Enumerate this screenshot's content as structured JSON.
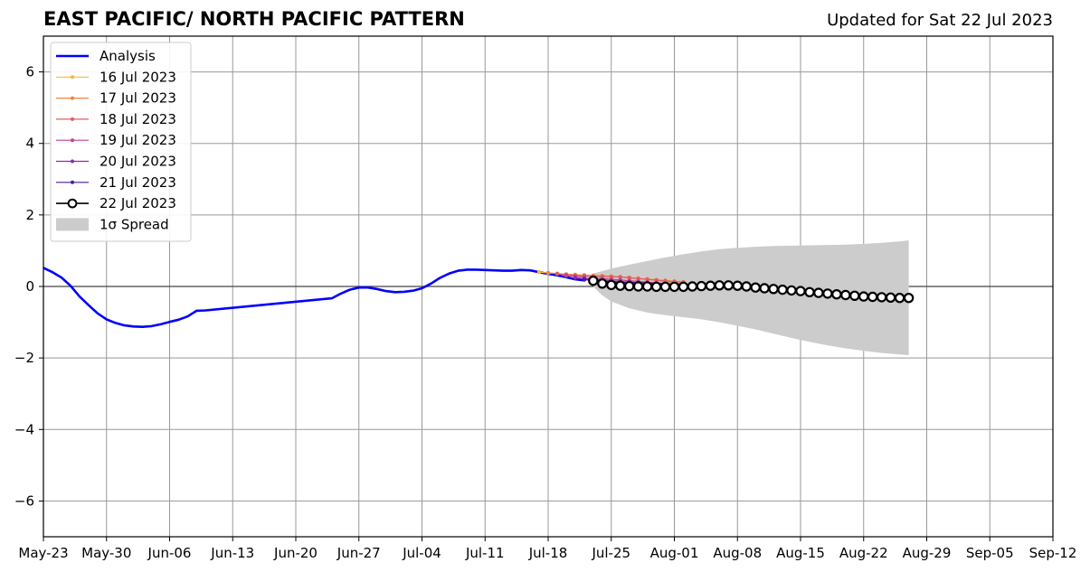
{
  "header": {
    "title": "EAST PACIFIC/ NORTH PACIFIC PATTERN",
    "subtitle": "Updated for Sat 22 Jul 2023"
  },
  "chart_data": {
    "type": "line",
    "title": "EAST PACIFIC/ NORTH PACIFIC PATTERN",
    "subtitle": "Updated for Sat 22 Jul 2023",
    "xlabel": "",
    "ylabel": "",
    "xlim": [
      "2023-05-23",
      "2023-09-12"
    ],
    "ylim": [
      -7,
      7
    ],
    "x_ticks": [
      "May-23",
      "May-30",
      "Jun-06",
      "Jun-13",
      "Jun-20",
      "Jun-27",
      "Jul-04",
      "Jul-11",
      "Jul-18",
      "Jul-25",
      "Aug-01",
      "Aug-08",
      "Aug-15",
      "Aug-22",
      "Aug-29",
      "Sep-05",
      "Sep-12"
    ],
    "y_ticks": [
      -6,
      -4,
      -2,
      0,
      2,
      4,
      6
    ],
    "y_tick_labels": [
      "−6",
      "−4",
      "−2",
      "0",
      "2",
      "4",
      "6"
    ],
    "grid": true,
    "legend_position": "top-left",
    "analysis": {
      "name": "Analysis",
      "color": "#0000ff",
      "points": [
        [
          "2023-05-23",
          0.52
        ],
        [
          "2023-05-24",
          0.4
        ],
        [
          "2023-05-25",
          0.25
        ],
        [
          "2023-05-26",
          0.02
        ],
        [
          "2023-05-27",
          -0.28
        ],
        [
          "2023-05-28",
          -0.52
        ],
        [
          "2023-05-29",
          -0.75
        ],
        [
          "2023-05-30",
          -0.92
        ],
        [
          "2023-05-31",
          -1.02
        ],
        [
          "2023-06-01",
          -1.09
        ],
        [
          "2023-06-02",
          -1.12
        ],
        [
          "2023-06-03",
          -1.13
        ],
        [
          "2023-06-04",
          -1.11
        ],
        [
          "2023-06-05",
          -1.06
        ],
        [
          "2023-06-06",
          -0.99
        ],
        [
          "2023-06-07",
          -0.93
        ],
        [
          "2023-06-08",
          -0.84
        ],
        [
          "2023-06-09",
          -0.68
        ],
        [
          "2023-06-10",
          -0.67
        ],
        [
          "2023-06-24",
          -0.33
        ],
        [
          "2023-06-25",
          -0.2
        ],
        [
          "2023-06-26",
          -0.09
        ],
        [
          "2023-06-27",
          -0.03
        ],
        [
          "2023-06-28",
          -0.03
        ],
        [
          "2023-06-29",
          -0.07
        ],
        [
          "2023-06-30",
          -0.13
        ],
        [
          "2023-07-01",
          -0.16
        ],
        [
          "2023-07-02",
          -0.15
        ],
        [
          "2023-07-03",
          -0.12
        ],
        [
          "2023-07-04",
          -0.05
        ],
        [
          "2023-07-05",
          0.08
        ],
        [
          "2023-07-06",
          0.24
        ],
        [
          "2023-07-07",
          0.36
        ],
        [
          "2023-07-08",
          0.44
        ],
        [
          "2023-07-09",
          0.47
        ],
        [
          "2023-07-10",
          0.47
        ],
        [
          "2023-07-11",
          0.46
        ],
        [
          "2023-07-12",
          0.45
        ],
        [
          "2023-07-13",
          0.44
        ],
        [
          "2023-07-14",
          0.44
        ],
        [
          "2023-07-15",
          0.46
        ],
        [
          "2023-07-16",
          0.45
        ],
        [
          "2023-07-17",
          0.4
        ],
        [
          "2023-07-18",
          0.35
        ],
        [
          "2023-07-19",
          0.31
        ],
        [
          "2023-07-20",
          0.26
        ],
        [
          "2023-07-21",
          0.2
        ],
        [
          "2023-07-22",
          0.17
        ]
      ]
    },
    "spread": {
      "name": "1σ Spread",
      "color": "#cccccc",
      "upper": [
        [
          "2023-07-23",
          0.36
        ],
        [
          "2023-07-25",
          0.5
        ],
        [
          "2023-07-27",
          0.61
        ],
        [
          "2023-07-29",
          0.71
        ],
        [
          "2023-07-31",
          0.81
        ],
        [
          "2023-08-02",
          0.9
        ],
        [
          "2023-08-04",
          0.98
        ],
        [
          "2023-08-06",
          1.04
        ],
        [
          "2023-08-08",
          1.08
        ],
        [
          "2023-08-10",
          1.11
        ],
        [
          "2023-08-12",
          1.13
        ],
        [
          "2023-08-14",
          1.14
        ],
        [
          "2023-08-16",
          1.15
        ],
        [
          "2023-08-18",
          1.16
        ],
        [
          "2023-08-20",
          1.17
        ],
        [
          "2023-08-22",
          1.19
        ],
        [
          "2023-08-24",
          1.22
        ],
        [
          "2023-08-26",
          1.26
        ],
        [
          "2023-08-27",
          1.29
        ]
      ],
      "lower": [
        [
          "2023-07-23",
          0.0
        ],
        [
          "2023-07-24",
          -0.25
        ],
        [
          "2023-07-25",
          -0.42
        ],
        [
          "2023-07-27",
          -0.61
        ],
        [
          "2023-07-29",
          -0.73
        ],
        [
          "2023-07-31",
          -0.8
        ],
        [
          "2023-08-02",
          -0.86
        ],
        [
          "2023-08-04",
          -0.92
        ],
        [
          "2023-08-06",
          -1.0
        ],
        [
          "2023-08-08",
          -1.1
        ],
        [
          "2023-08-10",
          -1.2
        ],
        [
          "2023-08-12",
          -1.32
        ],
        [
          "2023-08-14",
          -1.44
        ],
        [
          "2023-08-16",
          -1.55
        ],
        [
          "2023-08-18",
          -1.65
        ],
        [
          "2023-08-20",
          -1.73
        ],
        [
          "2023-08-22",
          -1.8
        ],
        [
          "2023-08-24",
          -1.86
        ],
        [
          "2023-08-26",
          -1.9
        ],
        [
          "2023-08-27",
          -1.92
        ]
      ]
    },
    "forecasts": [
      {
        "name": "16 Jul 2023",
        "color": "#f5b93a",
        "start": "2023-07-17",
        "values": [
          0.4,
          0.38,
          0.36,
          0.34,
          0.33,
          0.32,
          0.31,
          0.3,
          0.29,
          0.27,
          0.25,
          0.23,
          0.21,
          0.19,
          0.17,
          0.15,
          0.13
        ]
      },
      {
        "name": "17 Jul 2023",
        "color": "#f0853e",
        "start": "2023-07-18",
        "values": [
          0.38,
          0.36,
          0.34,
          0.32,
          0.31,
          0.3,
          0.29,
          0.28,
          0.27,
          0.25,
          0.22,
          0.2,
          0.17,
          0.14,
          0.11,
          0.08
        ]
      },
      {
        "name": "18 Jul 2023",
        "color": "#e05c6a",
        "start": "2023-07-19",
        "values": [
          0.35,
          0.33,
          0.31,
          0.3,
          0.29,
          0.28,
          0.27,
          0.26,
          0.24,
          0.22,
          0.2,
          0.18,
          0.16,
          0.14,
          0.12
        ]
      },
      {
        "name": "19 Jul 2023",
        "color": "#c2408b",
        "start": "2023-07-20",
        "values": [
          0.3,
          0.28,
          0.26,
          0.24,
          0.22,
          0.2,
          0.18,
          0.16,
          0.14,
          0.12,
          0.1,
          0.08,
          0.06,
          0.04
        ]
      },
      {
        "name": "20 Jul 2023",
        "color": "#8e2aa6",
        "start": "2023-07-21",
        "values": [
          0.24,
          0.22,
          0.2,
          0.18,
          0.16,
          0.14,
          0.12,
          0.11,
          0.1,
          0.09,
          0.08,
          0.07,
          0.06
        ]
      },
      {
        "name": "21 Jul 2023",
        "color": "#4a1a9c",
        "start": "2023-07-22",
        "values": [
          0.19,
          0.17,
          0.15,
          0.13,
          0.12,
          0.11,
          0.1,
          0.09,
          0.08,
          0.07,
          0.06,
          0.05
        ]
      },
      {
        "name": "22 Jul 2023",
        "color": "#000000",
        "start": "2023-07-23",
        "values": [
          0.16,
          0.08,
          0.04,
          0.02,
          0.01,
          0.0,
          0.0,
          -0.01,
          -0.01,
          -0.01,
          -0.01,
          0.0,
          0.01,
          0.02,
          0.03,
          0.03,
          0.02,
          0.0,
          -0.03,
          -0.05,
          -0.07,
          -0.09,
          -0.11,
          -0.13,
          -0.16,
          -0.18,
          -0.2,
          -0.22,
          -0.24,
          -0.26,
          -0.28,
          -0.29,
          -0.3,
          -0.31,
          -0.32,
          -0.32
        ]
      }
    ],
    "legend": [
      "Analysis",
      "16 Jul 2023",
      "17 Jul 2023",
      "18 Jul 2023",
      "19 Jul 2023",
      "20 Jul 2023",
      "21 Jul 2023",
      "22 Jul 2023",
      "1σ Spread"
    ]
  }
}
